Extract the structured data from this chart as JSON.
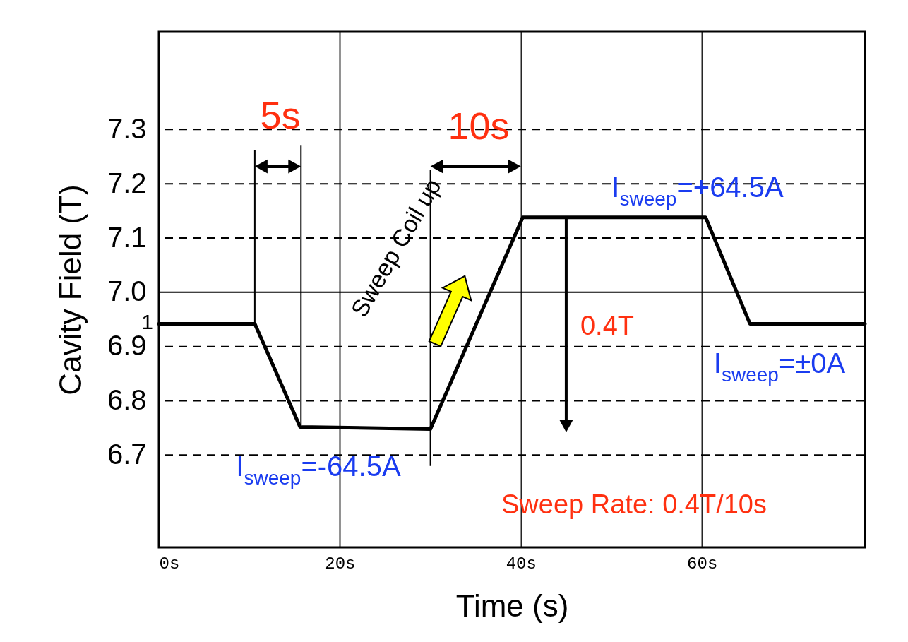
{
  "chart_data": {
    "type": "line",
    "xlabel": "Time (s)",
    "ylabel": "Cavity Field (T)",
    "x": [
      0,
      10.6,
      15.6,
      30.0,
      40.2,
      60.4,
      65.3,
      78
    ],
    "series": [
      {
        "color": "#000000",
        "values": [
          6.942,
          6.942,
          6.752,
          6.748,
          7.138,
          7.138,
          6.942,
          6.942
        ]
      }
    ],
    "xlim": [
      0,
      78
    ],
    "ylim": [
      6.53,
      7.48
    ],
    "xticks": [
      {
        "value": 0,
        "label": "0s"
      },
      {
        "value": 20,
        "label": "20s"
      },
      {
        "value": 40,
        "label": "40s"
      },
      {
        "value": 60,
        "label": "60s"
      }
    ],
    "yticks": [
      6.7,
      6.8,
      6.9,
      {
        "value": 7.0,
        "label": "7.0"
      },
      7.1,
      7.2,
      7.3
    ],
    "grid": true,
    "marker": "none",
    "line_style": "solid",
    "ref_lines": [
      {
        "axis": "y",
        "value": 7.0,
        "color": "#000000",
        "line_style": "solid"
      }
    ],
    "annotations": [
      {
        "text": "5s",
        "x": 10.6,
        "y": 6.942
      },
      "10s",
      "Sweep Coil up",
      "I$_{sweep}$=+64.5A",
      "0.4T",
      "I$_{sweep}$=±0A",
      "I$_{sweep}$=-64.5A",
      "Sweep Rate: 0.4T/10s",
      "1"
    ]
  }
}
